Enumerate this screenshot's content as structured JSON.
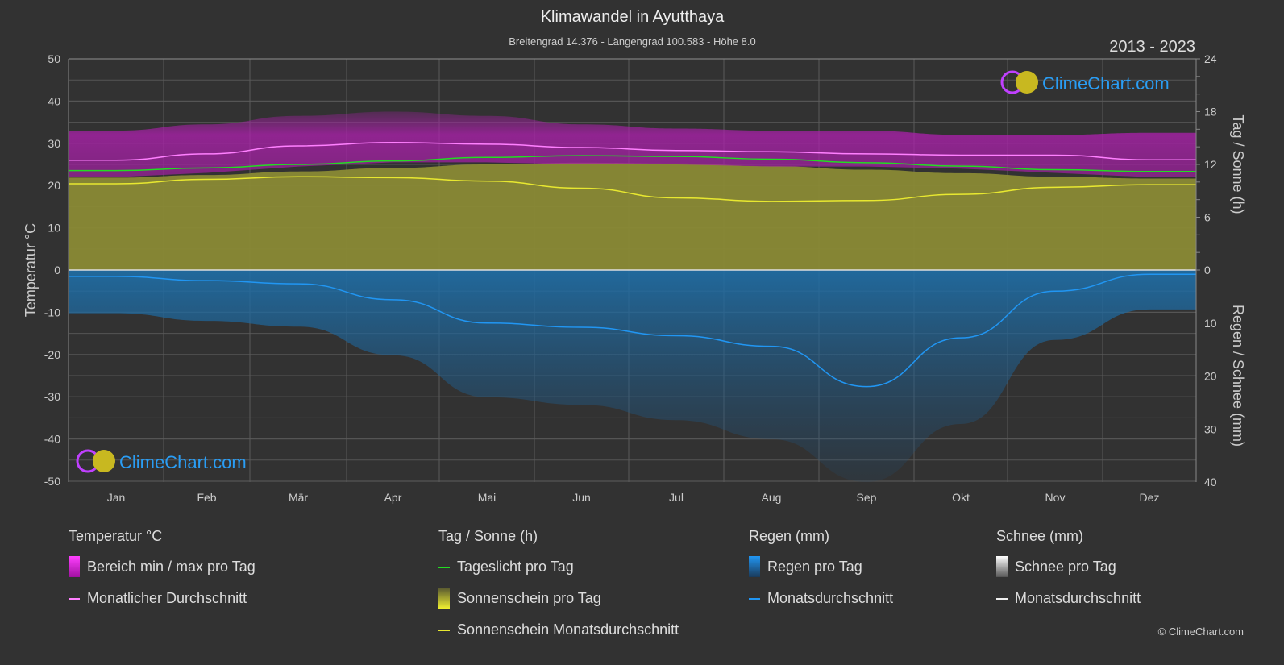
{
  "header": {
    "title": "Klimawandel in Ayutthaya",
    "subtitle": "Breitengrad 14.376 - Längengrad 100.583 - Höhe 8.0",
    "years": "2013 - 2023"
  },
  "logo": {
    "text": "ClimeChart.com"
  },
  "copyright": "© ClimeChart.com",
  "chart_data": {
    "type": "line",
    "title": "Klimawandel in Ayutthaya",
    "categories": [
      "Jan",
      "Feb",
      "Mär",
      "Apr",
      "Mai",
      "Jun",
      "Jul",
      "Aug",
      "Sep",
      "Okt",
      "Nov",
      "Dez"
    ],
    "left_axis": {
      "label": "Temperatur °C",
      "range": [
        -50,
        50
      ],
      "ticks": [
        "50",
        "40",
        "30",
        "20",
        "10",
        "0",
        "-10",
        "-20",
        "-30",
        "-40",
        "-50"
      ]
    },
    "right_axis_top": {
      "label": "Tag / Sonne (h)",
      "range": [
        0,
        24
      ],
      "ticks": [
        "24",
        "18",
        "12",
        "6",
        "0"
      ]
    },
    "right_axis_bottom": {
      "label": "Regen / Schnee (mm)",
      "range": [
        0,
        40
      ],
      "ticks": [
        "0",
        "10",
        "20",
        "30",
        "40"
      ]
    },
    "grid": true,
    "series": [
      {
        "name": "Monatlicher Durchschnitt",
        "axis": "temperature",
        "color": "#ff80ff",
        "values": [
          26.0,
          27.5,
          29.4,
          30.2,
          29.8,
          29.0,
          28.3,
          28.0,
          27.5,
          27.2,
          27.2,
          26.1
        ]
      },
      {
        "name": "Bereich min / max pro Tag",
        "axis": "temperature",
        "color": "#c020c0",
        "min": [
          22,
          23,
          24.5,
          25.5,
          25.5,
          25,
          25,
          24.5,
          24.5,
          24,
          23,
          22
        ],
        "max": [
          33,
          34.5,
          36.5,
          37.5,
          36.5,
          34.5,
          33.5,
          33,
          33,
          32,
          32,
          32.5
        ]
      },
      {
        "name": "Tageslicht pro Tag",
        "axis": "hours",
        "color": "#22dd22",
        "values": [
          11.3,
          11.6,
          12.0,
          12.4,
          12.8,
          13.0,
          12.9,
          12.6,
          12.2,
          11.8,
          11.4,
          11.2
        ]
      },
      {
        "name": "Sonnenschein Monatsdurchschnitt",
        "axis": "hours",
        "color": "#e8e830",
        "values": [
          9.8,
          10.3,
          10.6,
          10.5,
          10.1,
          9.3,
          8.2,
          7.8,
          7.9,
          8.6,
          9.4,
          9.7
        ]
      },
      {
        "name": "Monatsdurchschnitt",
        "axis": "rain",
        "color": "#2196f3",
        "values": [
          1.2,
          2.0,
          2.6,
          5.6,
          10.0,
          10.8,
          12.4,
          14.4,
          22.0,
          12.8,
          4.0,
          0.8
        ]
      }
    ]
  },
  "legend": {
    "groups": [
      {
        "title": "Temperatur °C",
        "items": [
          "Bereich min / max pro Tag",
          "Monatlicher Durchschnitt"
        ]
      },
      {
        "title": "Tag / Sonne (h)",
        "items": [
          "Tageslicht pro Tag",
          "Sonnenschein pro Tag",
          "Sonnenschein Monatsdurchschnitt"
        ]
      },
      {
        "title": "Regen (mm)",
        "items": [
          "Regen pro Tag",
          "Monatsdurchschnitt"
        ]
      },
      {
        "title": "Schnee (mm)",
        "items": [
          "Schnee pro Tag",
          "Monatsdurchschnitt"
        ]
      }
    ]
  }
}
